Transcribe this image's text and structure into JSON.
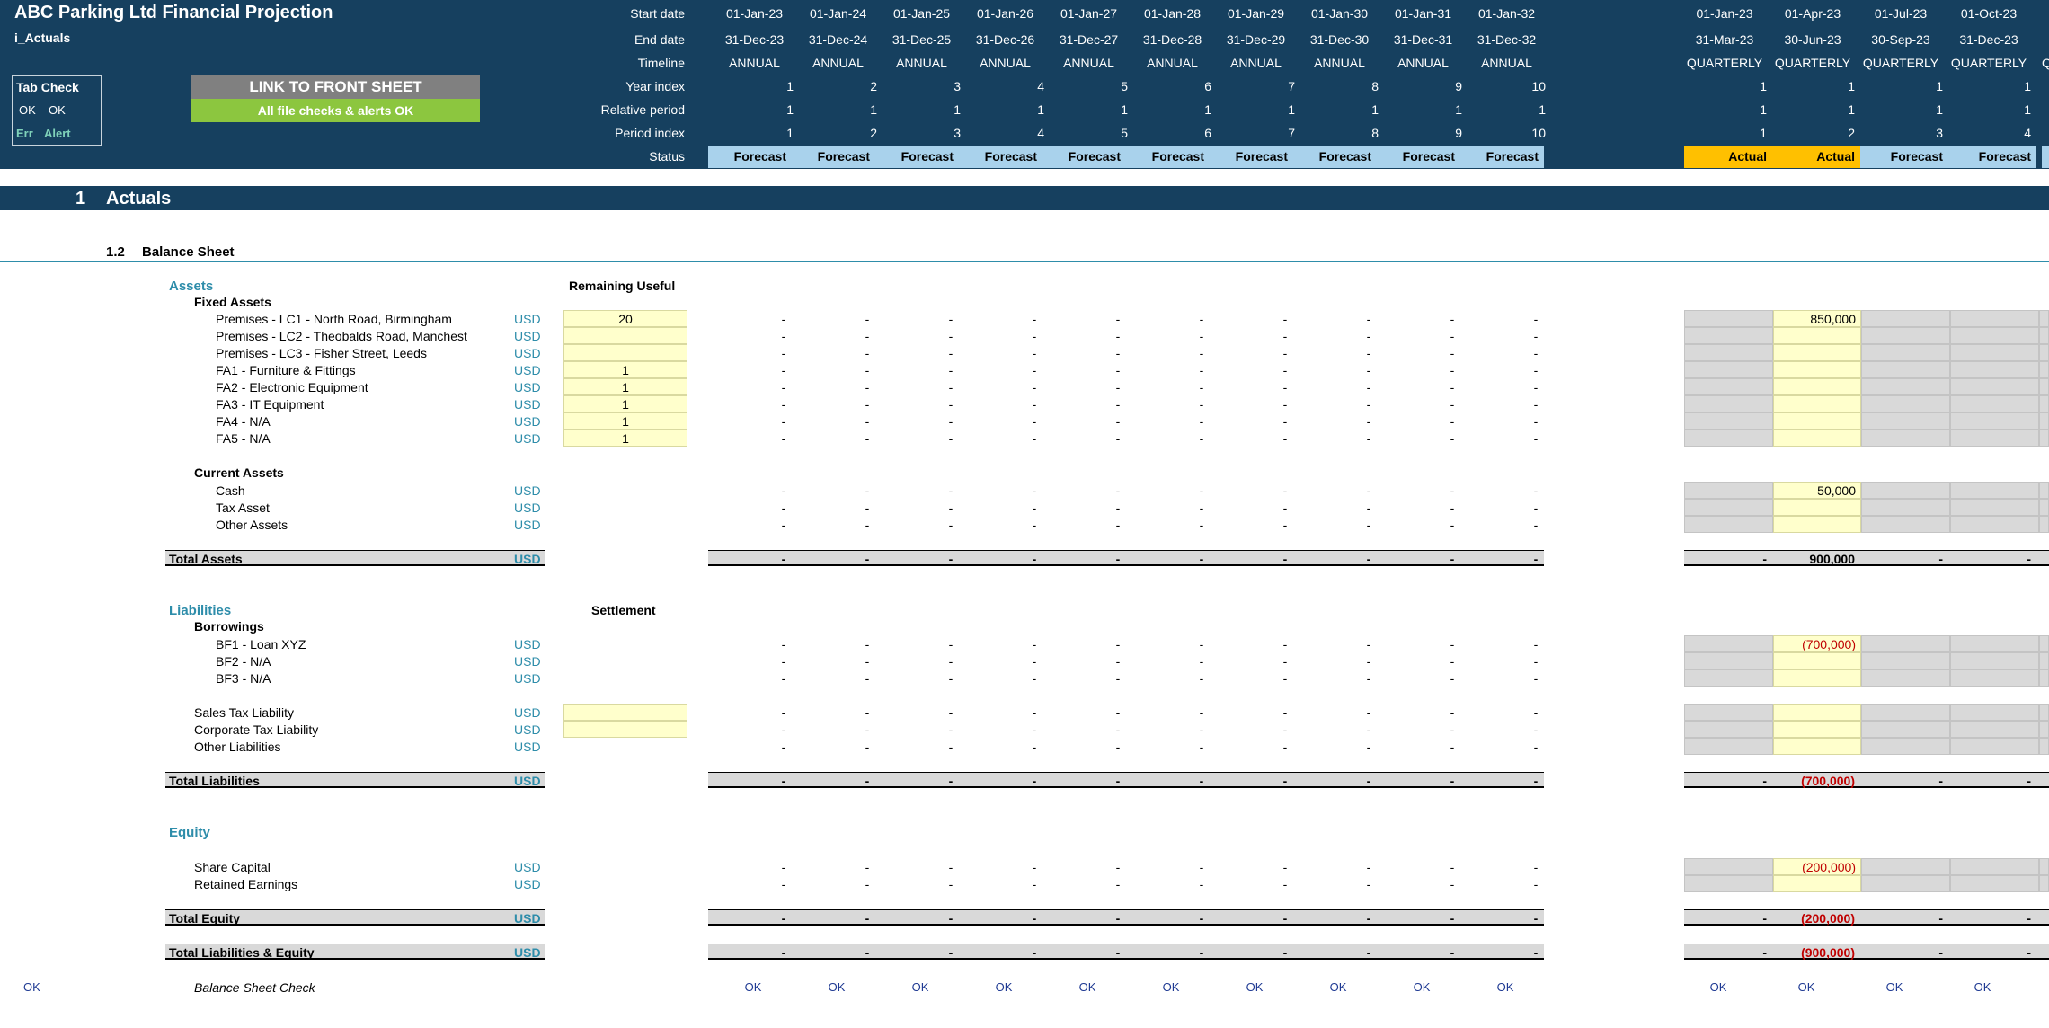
{
  "header": {
    "title": "ABC Parking Ltd Financial Projection",
    "sheet_name": "i_Actuals",
    "tab_check": {
      "label": "Tab Check",
      "ok1": "OK",
      "ok2": "OK",
      "err": "Err",
      "alert": "Alert"
    },
    "link_button": "LINK TO FRONT SHEET",
    "alert_status": "All file checks & alerts OK",
    "row_labels": [
      "Start date",
      "End date",
      "Timeline",
      "Year index",
      "Relative period",
      "Period index",
      "Status"
    ],
    "annual": {
      "start": [
        "01-Jan-23",
        "01-Jan-24",
        "01-Jan-25",
        "01-Jan-26",
        "01-Jan-27",
        "01-Jan-28",
        "01-Jan-29",
        "01-Jan-30",
        "01-Jan-31",
        "01-Jan-32"
      ],
      "end": [
        "31-Dec-23",
        "31-Dec-24",
        "31-Dec-25",
        "31-Dec-26",
        "31-Dec-27",
        "31-Dec-28",
        "31-Dec-29",
        "31-Dec-30",
        "31-Dec-31",
        "31-Dec-32"
      ],
      "timeline": [
        "ANNUAL",
        "ANNUAL",
        "ANNUAL",
        "ANNUAL",
        "ANNUAL",
        "ANNUAL",
        "ANNUAL",
        "ANNUAL",
        "ANNUAL",
        "ANNUAL"
      ],
      "year_index": [
        "1",
        "2",
        "3",
        "4",
        "5",
        "6",
        "7",
        "8",
        "9",
        "10"
      ],
      "relative_period": [
        "1",
        "1",
        "1",
        "1",
        "1",
        "1",
        "1",
        "1",
        "1",
        "1"
      ],
      "period_index": [
        "1",
        "2",
        "3",
        "4",
        "5",
        "6",
        "7",
        "8",
        "9",
        "10"
      ],
      "status": [
        "Forecast",
        "Forecast",
        "Forecast",
        "Forecast",
        "Forecast",
        "Forecast",
        "Forecast",
        "Forecast",
        "Forecast",
        "Forecast"
      ]
    },
    "quarterly": {
      "start": [
        "01-Jan-23",
        "01-Apr-23",
        "01-Jul-23",
        "01-Oct-23"
      ],
      "end": [
        "31-Mar-23",
        "30-Jun-23",
        "30-Sep-23",
        "31-Dec-23"
      ],
      "timeline": [
        "QUARTERLY",
        "QUARTERLY",
        "QUARTERLY",
        "QUARTERLY"
      ],
      "year_index": [
        "1",
        "1",
        "1",
        "1"
      ],
      "relative_period": [
        "1",
        "1",
        "1",
        "1"
      ],
      "period_index": [
        "1",
        "2",
        "3",
        "4"
      ],
      "status": [
        "Actual",
        "Actual",
        "Forecast",
        "Forecast"
      ],
      "overflow_char": "Q"
    }
  },
  "section": {
    "number": "1",
    "title": "Actuals"
  },
  "subsection": {
    "number": "1.2",
    "title": "Balance Sheet"
  },
  "dash": "-",
  "assets": {
    "heading": "Assets",
    "col_heading": "Remaining Useful",
    "fixed_heading": "Fixed Assets",
    "fixed": [
      {
        "label": "Premises - LC1 - North Road, Birmingham",
        "unit": "USD",
        "input": "20",
        "q2": "850,000"
      },
      {
        "label": "Premises - LC2 - Theobalds Road, Manchest",
        "unit": "USD",
        "input": "",
        "q2": ""
      },
      {
        "label": "Premises - LC3 - Fisher Street, Leeds",
        "unit": "USD",
        "input": "",
        "q2": ""
      },
      {
        "label": "FA1 - Furniture & Fittings",
        "unit": "USD",
        "input": "1",
        "q2": ""
      },
      {
        "label": "FA2 - Electronic Equipment",
        "unit": "USD",
        "input": "1",
        "q2": ""
      },
      {
        "label": "FA3 - IT Equipment",
        "unit": "USD",
        "input": "1",
        "q2": ""
      },
      {
        "label": "FA4 - N/A",
        "unit": "USD",
        "input": "1",
        "q2": ""
      },
      {
        "label": "FA5 - N/A",
        "unit": "USD",
        "input": "1",
        "q2": ""
      }
    ],
    "current_heading": "Current Assets",
    "current": [
      {
        "label": "Cash",
        "unit": "USD",
        "q2": "50,000"
      },
      {
        "label": "Tax Asset",
        "unit": "USD",
        "q2": ""
      },
      {
        "label": "Other Assets",
        "unit": "USD",
        "q2": ""
      }
    ],
    "total": {
      "label": "Total Assets",
      "unit": "USD",
      "q": [
        "-",
        "900,000",
        "-",
        "-"
      ]
    }
  },
  "liabilities": {
    "heading": "Liabilities",
    "col_heading": "Settlement",
    "borrow_heading": "Borrowings",
    "borrowings": [
      {
        "label": "BF1 - Loan XYZ",
        "unit": "USD",
        "q2": "(700,000)"
      },
      {
        "label": "BF2 - N/A",
        "unit": "USD",
        "q2": ""
      },
      {
        "label": "BF3 - N/A",
        "unit": "USD",
        "q2": ""
      }
    ],
    "other": [
      {
        "label": "Sales Tax Liability",
        "unit": "USD",
        "q2": ""
      },
      {
        "label": "Corporate Tax Liability",
        "unit": "USD",
        "q2": ""
      },
      {
        "label": "Other Liabilities",
        "unit": "USD",
        "q2": ""
      }
    ],
    "total": {
      "label": "Total Liabilities",
      "unit": "USD",
      "q": [
        "-",
        "(700,000)",
        "-",
        "-"
      ]
    }
  },
  "equity": {
    "heading": "Equity",
    "items": [
      {
        "label": "Share Capital",
        "unit": "USD",
        "q2": "(200,000)"
      },
      {
        "label": "Retained Earnings",
        "unit": "USD",
        "q2": ""
      }
    ],
    "total": {
      "label": "Total Equity",
      "unit": "USD",
      "q": [
        "-",
        "(200,000)",
        "-",
        "-"
      ]
    },
    "total_le": {
      "label": "Total Liabilities & Equity",
      "unit": "USD",
      "q": [
        "-",
        "(900,000)",
        "-",
        "-"
      ]
    }
  },
  "check": {
    "left_flag": "OK",
    "label": "Balance Sheet Check",
    "annual": [
      "OK",
      "OK",
      "OK",
      "OK",
      "OK",
      "OK",
      "OK",
      "OK",
      "OK",
      "OK"
    ],
    "quarterly": [
      "OK",
      "OK",
      "OK",
      "OK"
    ]
  }
}
